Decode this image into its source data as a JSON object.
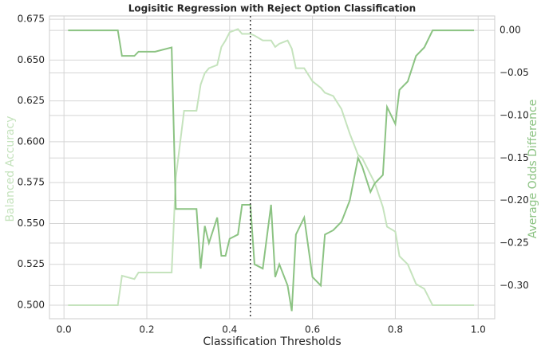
{
  "chart_data": {
    "type": "line",
    "title": "Logisitic Regression with Reject Option Classification",
    "x_label": "Classification Thresholds",
    "y_label": "Balanced Accuracy",
    "y2_label": "Average Odds Difference",
    "x": [
      0.01,
      0.13,
      0.14,
      0.17,
      0.18,
      0.22,
      0.26,
      0.27,
      0.29,
      0.32,
      0.33,
      0.34,
      0.35,
      0.37,
      0.38,
      0.39,
      0.4,
      0.42,
      0.43,
      0.45,
      0.46,
      0.48,
      0.5,
      0.51,
      0.52,
      0.54,
      0.55,
      0.56,
      0.58,
      0.6,
      0.62,
      0.63,
      0.65,
      0.67,
      0.69,
      0.71,
      0.72,
      0.74,
      0.75,
      0.77,
      0.78,
      0.8,
      0.81,
      0.83,
      0.85,
      0.87,
      0.89,
      0.99
    ],
    "series": [
      {
        "name": "Balanced Accuracy",
        "color": "#c5e3bd",
        "axis": "y",
        "values": [
          0.5,
          0.5,
          0.518,
          0.516,
          0.52,
          0.52,
          0.52,
          0.578,
          0.619,
          0.619,
          0.635,
          0.642,
          0.645,
          0.647,
          0.658,
          0.662,
          0.667,
          0.669,
          0.666,
          0.666,
          0.665,
          0.662,
          0.662,
          0.658,
          0.66,
          0.662,
          0.657,
          0.645,
          0.645,
          0.637,
          0.633,
          0.63,
          0.628,
          0.62,
          0.605,
          0.592,
          0.59,
          0.58,
          0.575,
          0.56,
          0.548,
          0.545,
          0.53,
          0.525,
          0.513,
          0.51,
          0.5,
          0.5
        ]
      },
      {
        "name": "Average Odds Difference",
        "color": "#8cc383",
        "axis": "y2",
        "values": [
          0,
          0,
          -0.03,
          -0.03,
          -0.025,
          -0.025,
          -0.02,
          -0.21,
          -0.21,
          -0.21,
          -0.28,
          -0.23,
          -0.25,
          -0.22,
          -0.265,
          -0.265,
          -0.245,
          -0.24,
          -0.205,
          -0.205,
          -0.275,
          -0.28,
          -0.205,
          -0.29,
          -0.275,
          -0.3,
          -0.33,
          -0.24,
          -0.22,
          -0.29,
          -0.3,
          -0.24,
          -0.235,
          -0.225,
          -0.2,
          -0.15,
          -0.16,
          -0.19,
          -0.18,
          -0.17,
          -0.09,
          -0.11,
          -0.07,
          -0.06,
          -0.03,
          -0.02,
          0,
          0
        ]
      }
    ],
    "vline": 0.45,
    "xlim": [
      -0.035,
      1.04
    ],
    "xticks": [
      {
        "value": 0,
        "label": "0.0"
      },
      0.2,
      0.4,
      0.6,
      0.8,
      {
        "value": 1,
        "label": "1.0"
      }
    ],
    "ylim": [
      0.4917,
      0.677
    ],
    "yticks": [
      {
        "value": 0.5,
        "label": "0.500"
      },
      0.525,
      {
        "value": 0.55,
        "label": "0.550"
      },
      0.575,
      {
        "value": 0.6,
        "label": "0.600"
      },
      0.625,
      {
        "value": 0.65,
        "label": "0.650"
      },
      0.675
    ],
    "y2lim": [
      -0.339,
      0.017
    ],
    "y2ticks": [
      {
        "value": 0,
        "label": "0.00"
      },
      {
        "value": -0.05,
        "label": "−0.05"
      },
      {
        "value": -0.1,
        "label": "−0.10"
      },
      {
        "value": -0.15,
        "label": "−0.15"
      },
      {
        "value": -0.2,
        "label": "−0.20"
      },
      {
        "value": -0.25,
        "label": "−0.25"
      },
      {
        "value": -0.3,
        "label": "−0.30"
      }
    ],
    "grid": true
  }
}
